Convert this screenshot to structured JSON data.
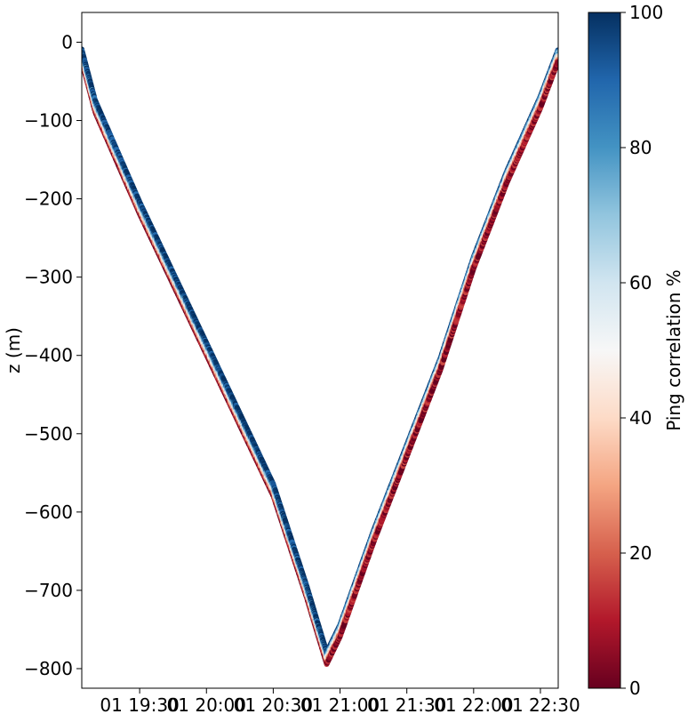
{
  "chart_data": {
    "type": "scatter",
    "title": "",
    "xlabel": "",
    "ylabel": "z (m)",
    "x_tick_labels": [
      "01 19:30",
      "01 20:00",
      "01 20:30",
      "01 21:00",
      "01 21:30",
      "01 22:00",
      "01 22:30"
    ],
    "x_tick_times": [
      "19:30",
      "20:00",
      "20:30",
      "21:00",
      "21:30",
      "22:00",
      "22:30"
    ],
    "xlim": [
      "19:04",
      "22:38"
    ],
    "ylim": [
      -825,
      38
    ],
    "y_ticks": [
      0,
      -100,
      -200,
      -300,
      -400,
      -500,
      -600,
      -700,
      -800
    ],
    "grid": false,
    "dive_profile": [
      {
        "time": "19:04",
        "z": -5
      },
      {
        "time": "19:10",
        "z": -70
      },
      {
        "time": "19:30",
        "z": -200
      },
      {
        "time": "19:45",
        "z": -290
      },
      {
        "time": "20:00",
        "z": -380
      },
      {
        "time": "20:15",
        "z": -470
      },
      {
        "time": "20:30",
        "z": -560
      },
      {
        "time": "20:45",
        "z": -690
      },
      {
        "time": "20:54",
        "z": -775
      },
      {
        "time": "21:00",
        "z": -740
      },
      {
        "time": "21:15",
        "z": -620
      },
      {
        "time": "21:30",
        "z": -510
      },
      {
        "time": "21:45",
        "z": -400
      },
      {
        "time": "22:00",
        "z": -270
      },
      {
        "time": "22:15",
        "z": -160
      },
      {
        "time": "22:30",
        "z": -65
      },
      {
        "time": "22:38",
        "z": -5
      }
    ],
    "colorbar": {
      "label": "Ping correlation %",
      "min": 0,
      "max": 100,
      "ticks": [
        0,
        20,
        40,
        60,
        80,
        100
      ],
      "colormap": "RdBu",
      "colors": [
        "#67001f",
        "#b2182b",
        "#d6604d",
        "#f4a582",
        "#fddbc7",
        "#f7f7f7",
        "#d1e5f0",
        "#92c5de",
        "#4393c3",
        "#2166ac",
        "#053061"
      ]
    }
  }
}
